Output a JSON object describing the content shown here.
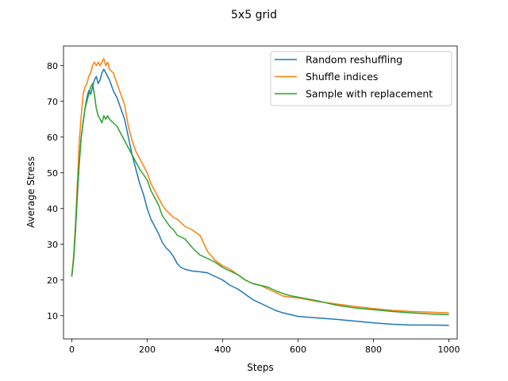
{
  "chart_data": {
    "type": "line",
    "title": "5x5 grid",
    "xlabel": "Steps",
    "ylabel": "Average Stress",
    "xlim": [
      -22,
      1022
    ],
    "ylim": [
      3.5,
      85.5
    ],
    "xticks": [
      0,
      200,
      400,
      600,
      800,
      1000
    ],
    "yticks": [
      10,
      20,
      30,
      40,
      50,
      60,
      70,
      80
    ],
    "grid": false,
    "legend_position": "top-right",
    "series": [
      {
        "name": "Random reshuffling",
        "color": "#1f77b4",
        "x": [
          0,
          5,
          10,
          15,
          20,
          25,
          30,
          35,
          40,
          45,
          50,
          55,
          60,
          65,
          70,
          75,
          80,
          85,
          90,
          95,
          100,
          110,
          120,
          130,
          140,
          150,
          160,
          170,
          180,
          190,
          200,
          210,
          220,
          230,
          240,
          250,
          260,
          270,
          280,
          290,
          300,
          320,
          340,
          360,
          380,
          400,
          420,
          440,
          460,
          480,
          500,
          520,
          540,
          560,
          580,
          600,
          650,
          700,
          750,
          800,
          850,
          900,
          950,
          1000
        ],
        "y": [
          21,
          26,
          34,
          44,
          53,
          60,
          64,
          68,
          71,
          73,
          72,
          74,
          76,
          77,
          75,
          76,
          78,
          79,
          78,
          77,
          76,
          73,
          71,
          68,
          65,
          60,
          55,
          51,
          47,
          44,
          40,
          37,
          35,
          33,
          30.5,
          29,
          28,
          26.5,
          24.5,
          23.5,
          23,
          22.5,
          22.3,
          22,
          21,
          20,
          18.5,
          17.5,
          16,
          14.5,
          13.5,
          12.5,
          11.5,
          10.8,
          10.3,
          9.8,
          9.4,
          9,
          8.5,
          8,
          7.6,
          7.4,
          7.4,
          7.3
        ]
      },
      {
        "name": "Shuffle indices",
        "color": "#ff7f0e",
        "x": [
          0,
          5,
          10,
          15,
          20,
          25,
          30,
          35,
          40,
          45,
          50,
          55,
          60,
          65,
          70,
          75,
          80,
          85,
          90,
          95,
          100,
          110,
          120,
          130,
          140,
          150,
          160,
          170,
          180,
          190,
          200,
          210,
          220,
          230,
          240,
          250,
          260,
          270,
          280,
          290,
          300,
          320,
          340,
          360,
          380,
          400,
          420,
          440,
          460,
          480,
          500,
          520,
          540,
          560,
          580,
          600,
          650,
          700,
          750,
          800,
          850,
          900,
          950,
          1000
        ],
        "y": [
          21,
          27,
          36,
          48,
          59,
          66,
          72,
          74,
          75,
          77,
          78,
          80,
          81,
          80,
          81,
          80,
          81,
          82,
          80,
          81,
          79,
          78,
          75,
          72,
          69,
          63,
          59,
          56,
          54,
          52,
          50,
          47,
          45,
          43,
          41,
          39.5,
          38.5,
          37.5,
          37,
          36,
          35,
          34,
          32.5,
          28,
          25.5,
          24,
          23,
          21.5,
          20,
          19,
          18.5,
          17.5,
          16.5,
          15.5,
          15.2,
          15,
          14,
          13.3,
          12.6,
          12,
          11.5,
          11.2,
          11,
          10.8
        ]
      },
      {
        "name": "Sample with replacement",
        "color": "#2ca02c",
        "x": [
          0,
          5,
          10,
          15,
          20,
          25,
          30,
          35,
          40,
          45,
          50,
          55,
          60,
          65,
          70,
          75,
          80,
          85,
          90,
          95,
          100,
          110,
          120,
          130,
          140,
          150,
          160,
          170,
          180,
          190,
          200,
          210,
          220,
          230,
          240,
          250,
          260,
          270,
          280,
          290,
          300,
          320,
          340,
          360,
          380,
          400,
          420,
          440,
          460,
          480,
          500,
          520,
          540,
          560,
          580,
          600,
          650,
          700,
          750,
          800,
          850,
          900,
          950,
          1000
        ],
        "y": [
          21,
          26,
          35,
          45,
          53,
          60,
          64,
          68,
          70,
          72,
          74,
          75,
          72,
          68,
          66,
          65,
          64,
          66,
          65,
          66,
          65,
          64,
          63,
          61,
          59,
          57,
          55,
          53,
          51,
          49.5,
          48,
          45,
          43,
          41,
          38,
          36.5,
          35,
          34,
          32.5,
          32,
          31.5,
          29,
          27,
          26,
          25,
          23.5,
          22.5,
          21.5,
          20,
          19,
          18.5,
          18,
          17,
          16.2,
          15.6,
          15.2,
          14.2,
          13,
          12.2,
          11.7,
          11.2,
          10.8,
          10.5,
          10.3
        ]
      }
    ]
  }
}
